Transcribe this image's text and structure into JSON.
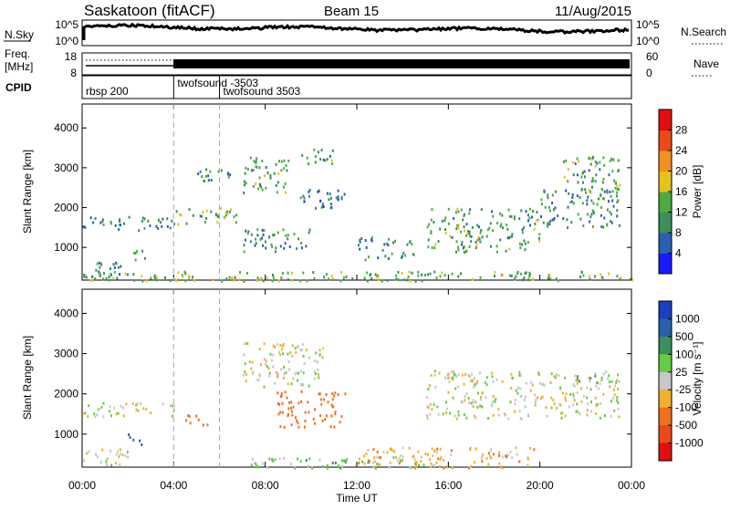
{
  "header": {
    "station": "Saskatoon (fitACF)",
    "beam": "Beam 15",
    "date": "11/Aug/2015"
  },
  "strips": {
    "nsky_label": "N.Sky",
    "nsky_ticks": [
      "10^5",
      "10^0"
    ],
    "nsearch_label": "N.Search",
    "freq_label_line1": "Freq.",
    "freq_label_line2": "[MHz]",
    "freq_ticks": [
      "18",
      "8"
    ],
    "nave_label": "Nave",
    "nave_ticks": [
      "60",
      "0"
    ],
    "cpid_label": "CPID",
    "cpid_entries": [
      {
        "label": "rbsp 200",
        "start_hour": 0
      },
      {
        "label": "twofsound -3503",
        "start_hour": 4
      },
      {
        "label": "twofsound 3503",
        "start_hour": 6
      }
    ]
  },
  "axes": {
    "xlabel": "Time UT",
    "x_ticks": [
      "00:00",
      "04:00",
      "08:00",
      "12:00",
      "16:00",
      "20:00",
      "00:00"
    ],
    "x_range_hours": [
      0,
      24
    ],
    "ylabel": "Slant Range [km]",
    "y_ticks": [
      "1000",
      "2000",
      "3000",
      "4000"
    ],
    "y_range_km": [
      180,
      4600
    ]
  },
  "power_colorbar": {
    "label": "Power [dB]",
    "ticks": [
      "4",
      "8",
      "12",
      "16",
      "20",
      "24",
      "28"
    ],
    "colors": [
      "#1a1aff",
      "#2a5fb0",
      "#3a8f5a",
      "#4faa45",
      "#e6c21a",
      "#f29020",
      "#e84a1a",
      "#e01010"
    ]
  },
  "velocity_colorbar": {
    "label": "Velocity [m s⁻¹]",
    "ticks": [
      "1000",
      "500",
      "100",
      "25",
      "-25",
      "-100",
      "-500",
      "-1000"
    ],
    "colors": [
      "#1a3fbf",
      "#2a60a8",
      "#3a8f5a",
      "#66cc44",
      "#c8c8c8",
      "#f0b030",
      "#f07020",
      "#e84a1a",
      "#e01010"
    ]
  },
  "chart_data": [
    {
      "type": "heatmap",
      "title": "Saskatoon (fitACF) Beam 15 11/Aug/2015",
      "quantity": "Power [dB]",
      "xlabel": "Time UT",
      "ylabel": "Slant Range [km]",
      "x_range_hours": [
        0,
        24
      ],
      "y_range_km": [
        180,
        4600
      ],
      "regions": [
        {
          "t0": 0.0,
          "t1": 4.0,
          "r0": 1450,
          "r1": 1800,
          "level_db": 10
        },
        {
          "t0": 0.0,
          "t1": 2.0,
          "r0": 250,
          "r1": 650,
          "level_db": 8
        },
        {
          "t0": 1.8,
          "t1": 2.8,
          "r0": 700,
          "r1": 1000,
          "level_db": 14
        },
        {
          "t0": 4.0,
          "t1": 6.8,
          "r0": 1600,
          "r1": 2100,
          "level_db": 14
        },
        {
          "t0": 5.0,
          "t1": 6.8,
          "r0": 2700,
          "r1": 3000,
          "level_db": 10
        },
        {
          "t0": 7.0,
          "t1": 9.0,
          "r0": 2400,
          "r1": 3300,
          "level_db": 12
        },
        {
          "t0": 7.0,
          "t1": 10.0,
          "r0": 900,
          "r1": 1500,
          "level_db": 10
        },
        {
          "t0": 9.5,
          "t1": 11.5,
          "r0": 2000,
          "r1": 2500,
          "level_db": 8
        },
        {
          "t0": 9.5,
          "t1": 11.0,
          "r0": 3100,
          "r1": 3500,
          "level_db": 12
        },
        {
          "t0": 12.0,
          "t1": 14.5,
          "r0": 700,
          "r1": 1300,
          "level_db": 10
        },
        {
          "t0": 15.0,
          "t1": 20.0,
          "r0": 900,
          "r1": 2000,
          "level_db": 12
        },
        {
          "t0": 20.0,
          "t1": 23.5,
          "r0": 1500,
          "r1": 2500,
          "level_db": 10
        },
        {
          "t0": 21.0,
          "t1": 23.5,
          "r0": 2300,
          "r1": 3300,
          "level_db": 12
        },
        {
          "t0": 0.0,
          "t1": 24.0,
          "r0": 180,
          "r1": 420,
          "level_db": 14
        }
      ]
    },
    {
      "type": "heatmap",
      "quantity": "Velocity [m s⁻¹]",
      "xlabel": "Time UT",
      "ylabel": "Slant Range [km]",
      "x_range_hours": [
        0,
        24
      ],
      "y_range_km": [
        180,
        4600
      ],
      "regions": [
        {
          "t0": 0.0,
          "t1": 4.0,
          "r0": 1450,
          "r1": 1800,
          "velocity": 0
        },
        {
          "t0": 0.0,
          "t1": 2.0,
          "r0": 250,
          "r1": 650,
          "velocity": 0
        },
        {
          "t0": 1.9,
          "t1": 2.6,
          "r0": 750,
          "r1": 1050,
          "velocity": 800
        },
        {
          "t0": 4.5,
          "t1": 5.5,
          "r0": 1200,
          "r1": 1500,
          "velocity": -300
        },
        {
          "t0": 8.5,
          "t1": 11.5,
          "r0": 1200,
          "r1": 2100,
          "velocity": -300
        },
        {
          "t0": 7.0,
          "t1": 15.0,
          "r0": 180,
          "r1": 450,
          "velocity": 60
        },
        {
          "t0": 12.0,
          "t1": 20.0,
          "r0": 180,
          "r1": 700,
          "velocity": -60
        },
        {
          "t0": 21.5,
          "t1": 22.5,
          "r0": 2300,
          "r1": 2500,
          "velocity": 300
        },
        {
          "t0": 7.0,
          "t1": 10.5,
          "r0": 2200,
          "r1": 3300,
          "velocity": 0
        },
        {
          "t0": 15.0,
          "t1": 23.5,
          "r0": 1400,
          "r1": 2600,
          "velocity": 0
        }
      ]
    }
  ]
}
